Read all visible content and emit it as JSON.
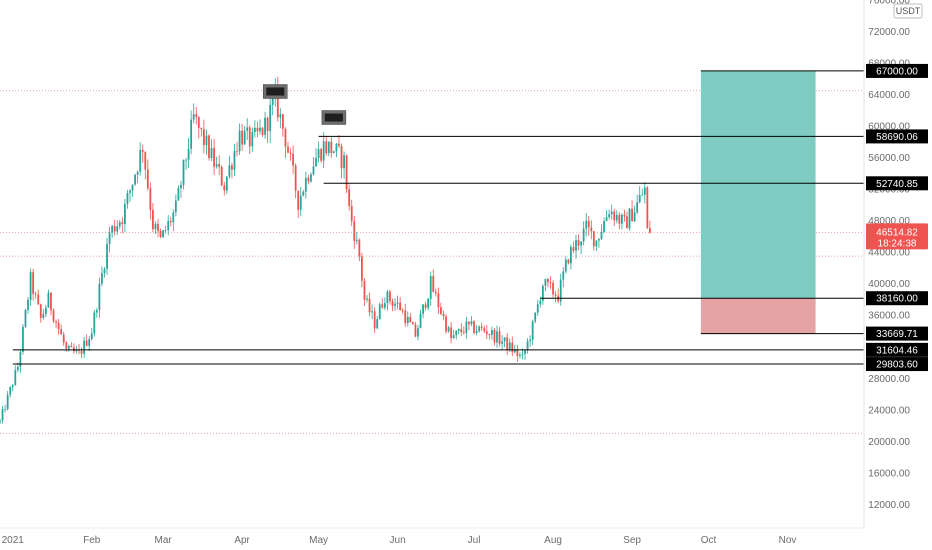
{
  "chart_data": {
    "type": "candlestick",
    "unit": "USDT",
    "y_axis_labels": [
      "76000.00",
      "72000.00",
      "68000.00",
      "64000.00",
      "60000.00",
      "56000.00",
      "52000.00",
      "48000.00",
      "44000.00",
      "40000.00",
      "36000.00",
      "32000.00",
      "28000.00",
      "24000.00",
      "20000.00",
      "16000.00",
      "12000.00"
    ],
    "ylim": [
      9000,
      76000
    ],
    "x_axis_labels": [
      "2021",
      "Feb",
      "Mar",
      "Apr",
      "May",
      "Jun",
      "Jul",
      "Aug",
      "Sep",
      "Oct",
      "Nov"
    ],
    "x_axis_dates": [
      "2021-01-01",
      "2021-02-01",
      "2021-03-01",
      "2021-04-01",
      "2021-05-01",
      "2021-06-01",
      "2021-07-01",
      "2021-08-01",
      "2021-09-01",
      "2021-10-01",
      "2021-11-01"
    ],
    "xlim": [
      "2020-12-27",
      "2021-12-01"
    ],
    "price_path": [
      {
        "date": "2020-12-27",
        "price": 22500
      },
      {
        "date": "2021-01-03",
        "price": 29500
      },
      {
        "date": "2021-01-08",
        "price": 40500
      },
      {
        "date": "2021-01-12",
        "price": 35500
      },
      {
        "date": "2021-01-15",
        "price": 38000
      },
      {
        "date": "2021-01-22",
        "price": 31500
      },
      {
        "date": "2021-01-27",
        "price": 31000
      },
      {
        "date": "2021-02-01",
        "price": 34000
      },
      {
        "date": "2021-02-08",
        "price": 46500
      },
      {
        "date": "2021-02-13",
        "price": 48500
      },
      {
        "date": "2021-02-21",
        "price": 57500
      },
      {
        "date": "2021-02-25",
        "price": 47500
      },
      {
        "date": "2021-02-28",
        "price": 45500
      },
      {
        "date": "2021-03-06",
        "price": 49500
      },
      {
        "date": "2021-03-13",
        "price": 61000
      },
      {
        "date": "2021-03-18",
        "price": 57500
      },
      {
        "date": "2021-03-25",
        "price": 52500
      },
      {
        "date": "2021-03-31",
        "price": 59000
      },
      {
        "date": "2021-04-05",
        "price": 58000
      },
      {
        "date": "2021-04-10",
        "price": 60000
      },
      {
        "date": "2021-04-14",
        "price": 63500
      },
      {
        "date": "2021-04-18",
        "price": 58500
      },
      {
        "date": "2021-04-23",
        "price": 50500
      },
      {
        "date": "2021-04-28",
        "price": 55000
      },
      {
        "date": "2021-05-03",
        "price": 57500
      },
      {
        "date": "2021-05-07",
        "price": 57000
      },
      {
        "date": "2021-05-11",
        "price": 55500
      },
      {
        "date": "2021-05-13",
        "price": 49500
      },
      {
        "date": "2021-05-17",
        "price": 43500
      },
      {
        "date": "2021-05-19",
        "price": 38000
      },
      {
        "date": "2021-05-23",
        "price": 35000
      },
      {
        "date": "2021-05-27",
        "price": 38500
      },
      {
        "date": "2021-06-02",
        "price": 37000
      },
      {
        "date": "2021-06-08",
        "price": 33500
      },
      {
        "date": "2021-06-14",
        "price": 40000
      },
      {
        "date": "2021-06-22",
        "price": 33000
      },
      {
        "date": "2021-06-28",
        "price": 34500
      },
      {
        "date": "2021-07-06",
        "price": 34000
      },
      {
        "date": "2021-07-13",
        "price": 32500
      },
      {
        "date": "2021-07-20",
        "price": 30500
      },
      {
        "date": "2021-07-24",
        "price": 34500
      },
      {
        "date": "2021-07-28",
        "price": 40000
      },
      {
        "date": "2021-08-03",
        "price": 38500
      },
      {
        "date": "2021-08-07",
        "price": 43500
      },
      {
        "date": "2021-08-14",
        "price": 47000
      },
      {
        "date": "2021-08-18",
        "price": 45500
      },
      {
        "date": "2021-08-23",
        "price": 49500
      },
      {
        "date": "2021-08-29",
        "price": 47500
      },
      {
        "date": "2021-09-02",
        "price": 49500
      },
      {
        "date": "2021-09-06",
        "price": 52000
      },
      {
        "date": "2021-09-07",
        "price": 46500
      },
      {
        "date": "2021-09-08",
        "price": 46514.82
      }
    ],
    "horizontal_levels": [
      {
        "label": "67000.00",
        "value": 67000,
        "start": "2021-09-28",
        "end": "2021-12-01"
      },
      {
        "label": "58690.06",
        "value": 58690.06,
        "start": "2021-05-01",
        "end": "2021-12-01"
      },
      {
        "label": "52740.85",
        "value": 52740.85,
        "start": "2021-05-03",
        "end": "2021-12-01"
      },
      {
        "label": "38160.00",
        "value": 38160,
        "start": "2021-07-27",
        "end": "2021-12-01"
      },
      {
        "label": "33669.71",
        "value": 33669.71,
        "start": "2021-09-28",
        "end": "2021-12-01"
      },
      {
        "label": "31604.46",
        "value": 31604.46,
        "start": "2021-01-01",
        "end": "2021-12-01"
      },
      {
        "label": "29803.60",
        "value": 29803.6,
        "start": "2021-01-01",
        "end": "2021-12-01"
      }
    ],
    "dotted_levels": [
      64500,
      46514.82,
      43500,
      21000
    ],
    "current_price": {
      "label": "46514.82",
      "value": 46514.82,
      "countdown": "18:24:38"
    },
    "position": {
      "start": "2021-09-28",
      "end": "2021-11-12",
      "entry": 38160,
      "target": 67000,
      "stop": 33669.71,
      "profit_color": "#7fcdc2",
      "loss_color": "#e5a4a3"
    },
    "markers": [
      {
        "date": "2021-04-14",
        "value": 63500
      },
      {
        "date": "2021-05-07",
        "value": 60200
      }
    ],
    "colors": {
      "up": "#26a69a",
      "down": "#ef5350",
      "level": "#000000",
      "dotted": "#e8a0a0",
      "current": "#ef5350"
    },
    "grid": false,
    "legend": "none"
  }
}
